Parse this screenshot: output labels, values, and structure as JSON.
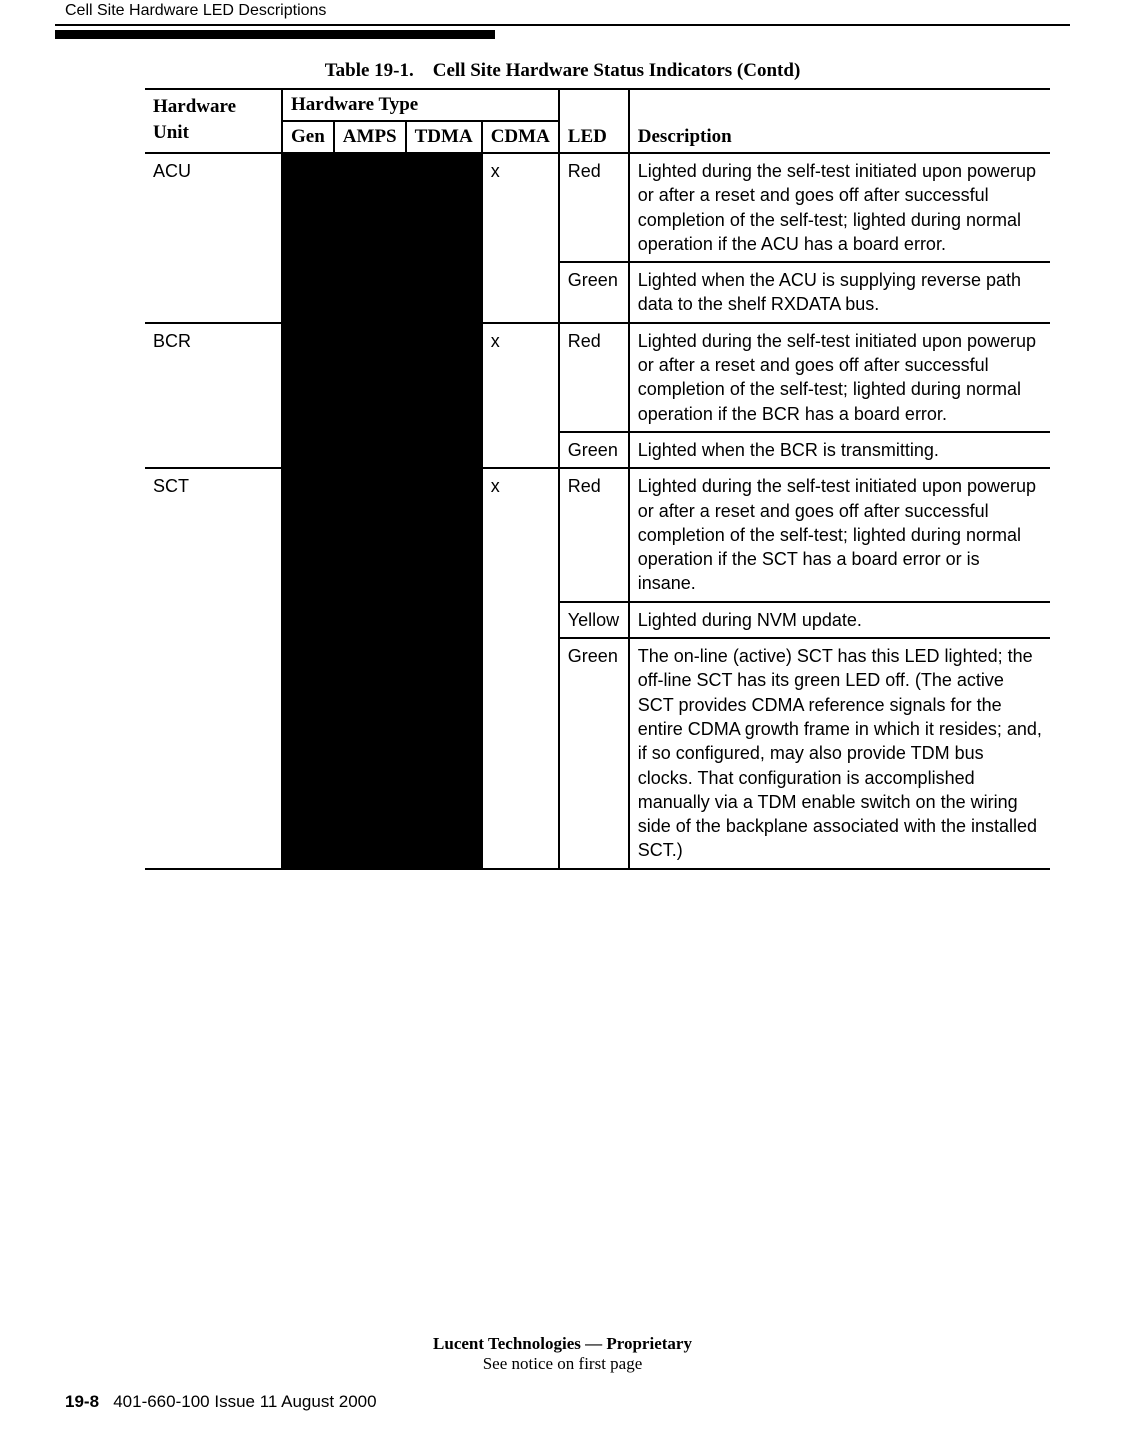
{
  "header": {
    "running": "Cell Site Hardware LED Descriptions"
  },
  "caption": {
    "label": "Table 19-1.",
    "title": "Cell Site Hardware Status Indicators  (Contd)"
  },
  "hdr": {
    "hw": "Hardware Unit",
    "htype": "Hardware Type",
    "gen": "Gen",
    "amps": "AMPS",
    "tdma": "TDMA",
    "cdma": "CDMA",
    "led": "LED",
    "desc": "Description"
  },
  "rows": {
    "acu": {
      "unit": "ACU",
      "cdma": "x",
      "r1": {
        "led": "Red",
        "desc": "Lighted during the self-test initiated upon powerup or after a reset and goes off after successful completion of the self-test; lighted during normal operation if the ACU has a board error."
      },
      "r2": {
        "led": "Green",
        "desc": "Lighted when the ACU is supplying reverse path data to the shelf RXDATA bus."
      }
    },
    "bcr": {
      "unit": "BCR",
      "cdma": "x",
      "r1": {
        "led": "Red",
        "desc": "Lighted during the self-test initiated upon powerup or after a reset and goes off after successful completion of the self-test; lighted during normal operation if the BCR has a board error."
      },
      "r2": {
        "led": "Green",
        "desc": "Lighted when the BCR is transmitting."
      }
    },
    "sct": {
      "unit": "SCT",
      "cdma": "x",
      "r1": {
        "led": "Red",
        "desc": "Lighted during the self-test initiated upon powerup or after a reset and goes off after successful completion of the self-test; lighted during normal operation if the SCT has a board error or is insane."
      },
      "r2": {
        "led": "Yellow",
        "desc": "Lighted during NVM update."
      },
      "r3": {
        "led": "Green",
        "desc": "The on-line (active) SCT has this LED lighted; the off-line SCT has its green LED off. (The active SCT provides CDMA reference signals for the entire CDMA growth frame in which it resides; and, if so configured, may also provide TDM bus clocks. That configuration is accomplished manually via a TDM enable switch on the wiring side of the backplane associated with the installed SCT.)"
      }
    }
  },
  "colors": {
    "black": "#000000",
    "white": "#ffffff"
  },
  "footer": {
    "line1": "Lucent Technologies — Proprietary",
    "line2": "See notice on first page",
    "pgbold": "19-8",
    "pgrest": "401-660-100 Issue 11    August 2000"
  }
}
